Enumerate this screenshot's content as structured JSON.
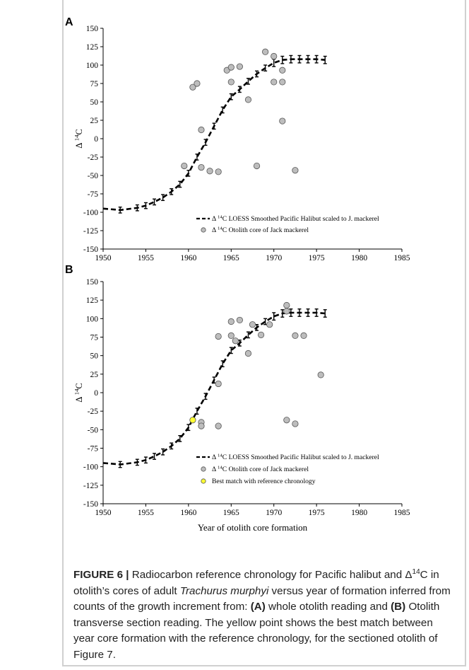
{
  "chart_data": [
    {
      "panel": "A",
      "type": "scatter",
      "xlim": [
        1950,
        1985
      ],
      "ylim": [
        -150,
        150
      ],
      "x_ticks": [
        1950,
        1955,
        1960,
        1965,
        1970,
        1975,
        1980,
        1985
      ],
      "y_ticks": [
        150,
        125,
        100,
        75,
        50,
        25,
        0,
        -25,
        -50,
        -75,
        -100,
        -125,
        -150
      ],
      "ylabel": "Δ 14C",
      "xlabel": "",
      "legend_position": "bottom-right",
      "series": [
        {
          "name": "Δ 14C LOESS Smoothed Pacific Halibut scaled to J. mackerel",
          "kind": "dashed-line-errorbars",
          "x": [
            1950,
            1952,
            1954,
            1955,
            1956,
            1957,
            1958,
            1959,
            1960,
            1961,
            1962,
            1963,
            1964,
            1965,
            1966,
            1967,
            1968,
            1969,
            1970,
            1971,
            1972,
            1973,
            1974,
            1975,
            1976
          ],
          "y": [
            -95,
            -97,
            -94,
            -91,
            -86,
            -80,
            -72,
            -62,
            -47,
            -25,
            -5,
            17,
            39,
            57,
            67,
            78,
            88,
            96,
            103,
            107,
            108,
            108,
            108,
            108,
            107
          ],
          "error": [
            0,
            4,
            4,
            4,
            4,
            4,
            4,
            4,
            4,
            4,
            4,
            4,
            4,
            4,
            4,
            4,
            4,
            4,
            5,
            5,
            5,
            5,
            5,
            5,
            5
          ]
        },
        {
          "name": "Δ 14C Otolith core of Jack mackerel",
          "kind": "gray-circles",
          "x": [
            1959.5,
            1960.5,
            1961,
            1961.5,
            1961.5,
            1962.5,
            1963.5,
            1964.5,
            1965,
            1965,
            1966,
            1967,
            1968,
            1969,
            1970,
            1970,
            1971,
            1971,
            1971,
            1972.5
          ],
          "y": [
            -37,
            70,
            75,
            12,
            -39,
            -44,
            -45,
            93,
            97,
            77,
            98,
            53,
            -37,
            118,
            112,
            77,
            93,
            77,
            24,
            -43
          ]
        }
      ]
    },
    {
      "panel": "B",
      "type": "scatter",
      "xlim": [
        1950,
        1985
      ],
      "ylim": [
        -150,
        150
      ],
      "x_ticks": [
        1950,
        1955,
        1960,
        1965,
        1970,
        1975,
        1980,
        1985
      ],
      "y_ticks": [
        150,
        125,
        100,
        75,
        50,
        25,
        0,
        -25,
        -50,
        -75,
        -100,
        -125,
        -150
      ],
      "ylabel": "Δ 14C",
      "xlabel": "Year of otolith core formation",
      "legend_position": "bottom-right",
      "series": [
        {
          "name": "Δ 14C LOESS Smoothed Pacific Halibut scaled to J. mackerel",
          "kind": "dashed-line-errorbars",
          "x": [
            1950,
            1952,
            1954,
            1955,
            1956,
            1957,
            1958,
            1959,
            1960,
            1961,
            1962,
            1963,
            1964,
            1965,
            1966,
            1967,
            1968,
            1969,
            1970,
            1971,
            1972,
            1973,
            1974,
            1975,
            1976
          ],
          "y": [
            -95,
            -97,
            -94,
            -91,
            -86,
            -80,
            -72,
            -62,
            -47,
            -25,
            -5,
            17,
            39,
            57,
            67,
            78,
            88,
            96,
            103,
            107,
            108,
            108,
            108,
            108,
            107
          ],
          "error": [
            0,
            4,
            4,
            4,
            4,
            4,
            4,
            4,
            4,
            4,
            4,
            4,
            4,
            4,
            4,
            4,
            4,
            4,
            5,
            5,
            5,
            5,
            5,
            5,
            5
          ]
        },
        {
          "name": "Δ 14C  Otolith core of Jack mackerel",
          "kind": "gray-circles",
          "x": [
            1961.5,
            1961.5,
            1963.5,
            1963.5,
            1963.5,
            1965,
            1965,
            1965.5,
            1966,
            1967,
            1967.5,
            1968.5,
            1969.5,
            1971.5,
            1971.5,
            1971.5,
            1972.5,
            1972.5,
            1973.5,
            1975.5
          ],
          "y": [
            -40,
            -45,
            76,
            12,
            -45,
            96,
            77,
            70,
            98,
            53,
            92,
            78,
            92,
            118,
            110,
            -37,
            77,
            -42,
            77,
            24
          ]
        },
        {
          "name": "Best match  with reference chronology",
          "kind": "yellow-circle",
          "x": [
            1960.5
          ],
          "y": [
            -37
          ]
        }
      ]
    }
  ],
  "panel_labels": [
    "A",
    "B"
  ],
  "caption": {
    "label": "FIGURE 6 |",
    "text_1": " Radiocarbon reference chronology for Pacific halibut and Δ",
    "sup_1": "14",
    "text_2": "C in otolith’s cores of adult ",
    "species": "Trachurus murphyi",
    "text_3": " versus year of formation inferred from counts of the growth increment from: ",
    "part_a": "(A)",
    "text_4": " whole otolith reading and ",
    "part_b": "(B)",
    "text_5": " Otolith transverse section reading. The yellow point shows the best match between year core formation with the reference chronology, for the sectioned otolith of Figure 7."
  },
  "colors": {
    "point_fill": "#bdbdbd",
    "point_stroke": "#555555",
    "best_match_fill": "#ffff33",
    "line": "#000000"
  }
}
